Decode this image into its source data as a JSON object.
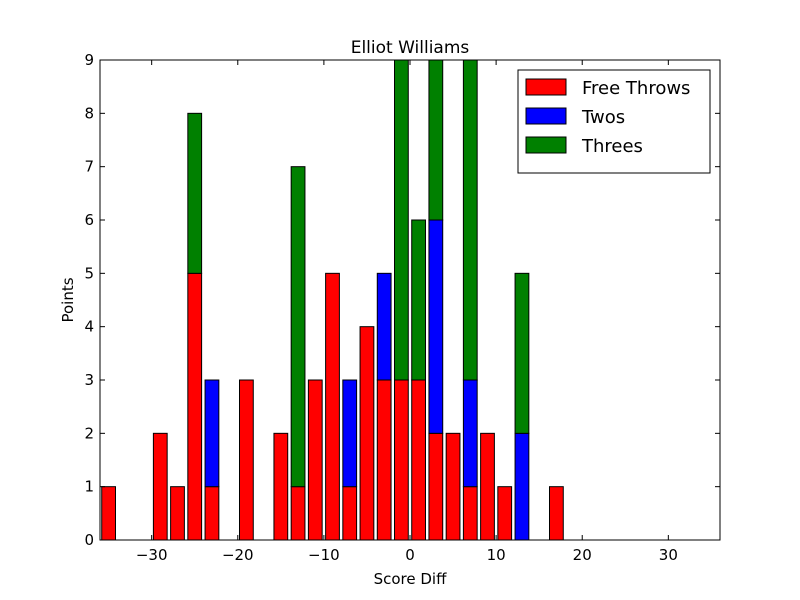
{
  "chart_data": {
    "type": "bar",
    "stacked": true,
    "title": "Elliot Williams",
    "xlabel": "Score Diff",
    "ylabel": "Points",
    "xlim": [
      -36,
      36
    ],
    "ylim": [
      0,
      9
    ],
    "xticks": [
      -30,
      -20,
      -10,
      0,
      10,
      20,
      30
    ],
    "xtick_labels": [
      "−30",
      "−20",
      "−10",
      "0",
      "10",
      "20",
      "30"
    ],
    "yticks": [
      0,
      1,
      2,
      3,
      4,
      5,
      6,
      7,
      8,
      9
    ],
    "ytick_labels": [
      "0",
      "1",
      "2",
      "3",
      "4",
      "5",
      "6",
      "7",
      "8",
      "9"
    ],
    "bar_width": 1.6,
    "legend_position": "top-right",
    "x": [
      -35,
      -29,
      -27,
      -25,
      -23,
      -19,
      -15,
      -13,
      -11,
      -9,
      -7,
      -5,
      -3,
      -1,
      1,
      3,
      5,
      7,
      9,
      11,
      13,
      17
    ],
    "series": [
      {
        "name": "Free Throws",
        "color": "#ff0000",
        "values": [
          1,
          2,
          1,
          5,
          1,
          3,
          2,
          1,
          3,
          5,
          1,
          4,
          3,
          3,
          3,
          2,
          2,
          1,
          2,
          1,
          0,
          1
        ]
      },
      {
        "name": "Twos",
        "color": "#0000ff",
        "values": [
          0,
          0,
          0,
          0,
          2,
          0,
          0,
          0,
          0,
          0,
          2,
          0,
          2,
          0,
          0,
          4,
          0,
          2,
          0,
          0,
          2,
          0
        ]
      },
      {
        "name": "Threes",
        "color": "#008000",
        "values": [
          0,
          0,
          0,
          3,
          0,
          0,
          0,
          6,
          0,
          0,
          0,
          0,
          0,
          6,
          3,
          3,
          0,
          6,
          0,
          0,
          3,
          0
        ]
      }
    ]
  }
}
